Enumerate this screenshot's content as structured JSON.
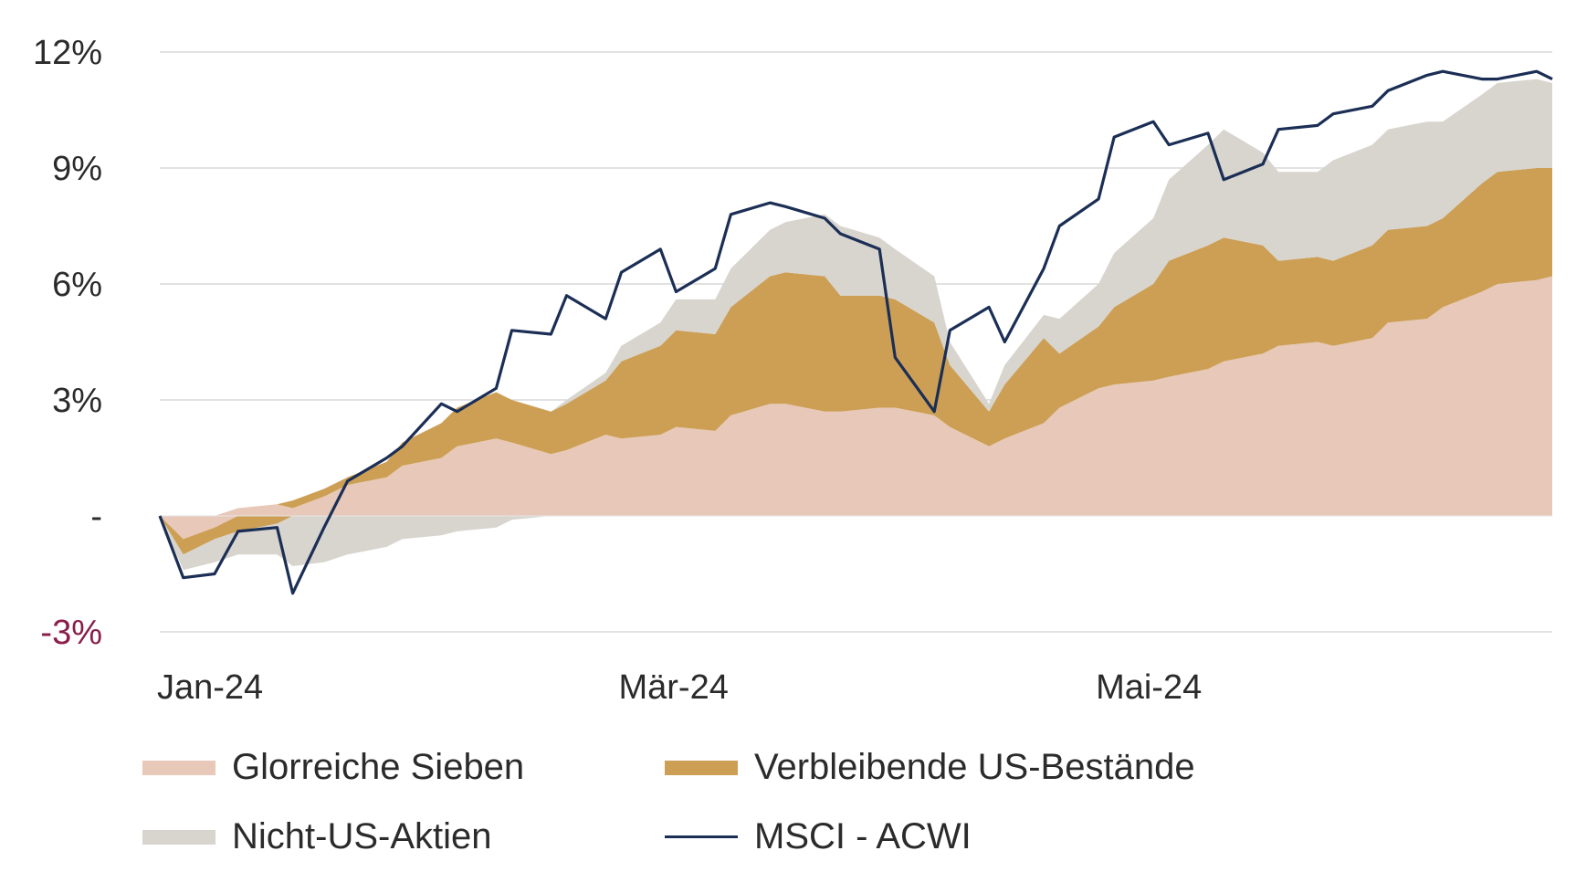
{
  "chart_data": {
    "type": "area",
    "stacked": true,
    "title": "",
    "xlabel": "",
    "ylabel": "",
    "ylim": [
      -3,
      12
    ],
    "grid": true,
    "legend_position": "bottom",
    "y_ticks": [
      {
        "value": 12,
        "label": "12%"
      },
      {
        "value": 9,
        "label": "9%"
      },
      {
        "value": 6,
        "label": "6%"
      },
      {
        "value": 3,
        "label": "3%"
      },
      {
        "value": 0,
        "label": "-"
      },
      {
        "value": -3,
        "label": "-3%"
      }
    ],
    "x_ticks": [
      {
        "date": "2024-01-02",
        "label": "Jan-24"
      },
      {
        "date": "2024-03-01",
        "label": "Mär-24"
      },
      {
        "date": "2024-05-01",
        "label": "Mai-24"
      }
    ],
    "x": [
      "2024-01-02",
      "2024-01-05",
      "2024-01-09",
      "2024-01-12",
      "2024-01-17",
      "2024-01-19",
      "2024-01-23",
      "2024-01-26",
      "2024-01-31",
      "2024-02-02",
      "2024-02-07",
      "2024-02-09",
      "2024-02-14",
      "2024-02-16",
      "2024-02-21",
      "2024-02-23",
      "2024-02-28",
      "2024-03-01",
      "2024-03-06",
      "2024-03-08",
      "2024-03-13",
      "2024-03-15",
      "2024-03-20",
      "2024-03-22",
      "2024-03-27",
      "2024-03-29",
      "2024-04-03",
      "2024-04-05",
      "2024-04-10",
      "2024-04-12",
      "2024-04-17",
      "2024-04-19",
      "2024-04-24",
      "2024-04-26",
      "2024-05-01",
      "2024-05-03",
      "2024-05-08",
      "2024-05-10",
      "2024-05-15",
      "2024-05-17",
      "2024-05-22",
      "2024-05-24",
      "2024-05-29",
      "2024-05-31",
      "2024-06-05",
      "2024-06-07",
      "2024-06-12",
      "2024-06-14",
      "2024-06-19",
      "2024-06-21",
      "2024-06-26",
      "2024-06-28"
    ],
    "series": [
      {
        "name": "Glorreiche Sieben",
        "color": "#e8c8b8",
        "values": [
          0.0,
          -0.6,
          -0.3,
          0.2,
          0.3,
          0.2,
          0.5,
          0.8,
          1.0,
          1.3,
          1.5,
          1.8,
          2.0,
          1.9,
          1.6,
          1.7,
          2.1,
          2.0,
          2.1,
          2.3,
          2.2,
          2.6,
          2.9,
          2.9,
          2.7,
          2.7,
          2.8,
          2.8,
          2.6,
          2.3,
          1.8,
          2.0,
          2.4,
          2.8,
          3.3,
          3.4,
          3.5,
          3.6,
          3.8,
          4.0,
          4.2,
          4.4,
          4.5,
          4.4,
          4.6,
          5.0,
          5.1,
          5.4,
          5.8,
          6.0,
          6.1,
          6.2
        ]
      },
      {
        "name": "Verbleibende US-Bestände",
        "color": "#cc9f55",
        "values": [
          0.0,
          -0.4,
          -0.3,
          -0.4,
          -0.2,
          0.2,
          0.2,
          0.2,
          0.4,
          0.6,
          0.9,
          1.0,
          1.2,
          1.1,
          1.1,
          1.2,
          1.4,
          2.0,
          2.3,
          2.5,
          2.5,
          2.8,
          3.3,
          3.4,
          3.5,
          3.0,
          2.9,
          2.8,
          2.4,
          1.6,
          0.9,
          1.4,
          2.2,
          1.4,
          1.6,
          2.0,
          2.5,
          3.0,
          3.2,
          3.2,
          2.8,
          2.2,
          2.2,
          2.2,
          2.4,
          2.4,
          2.4,
          2.3,
          2.8,
          2.9,
          2.9,
          2.8
        ]
      },
      {
        "name": "Nicht-US-Aktien",
        "color": "#d8d4ce",
        "values": [
          0.0,
          -0.4,
          -0.6,
          -0.6,
          -0.8,
          -1.3,
          -1.2,
          -1.0,
          -0.8,
          -0.6,
          -0.5,
          -0.4,
          -0.3,
          -0.1,
          0.0,
          0.1,
          0.2,
          0.4,
          0.6,
          0.8,
          0.9,
          1.0,
          1.2,
          1.3,
          1.6,
          1.8,
          1.5,
          1.3,
          1.2,
          0.6,
          0.2,
          0.5,
          0.6,
          0.9,
          1.1,
          1.4,
          1.7,
          2.1,
          2.6,
          2.8,
          2.4,
          2.3,
          2.2,
          2.6,
          2.6,
          2.6,
          2.7,
          2.5,
          2.3,
          2.3,
          2.3,
          2.2
        ]
      },
      {
        "name": "MSCI - ACWI",
        "color": "#1b2e55",
        "type": "line",
        "values": [
          0.0,
          -1.6,
          -1.5,
          -0.4,
          -0.3,
          -2.0,
          -0.3,
          0.9,
          1.5,
          1.8,
          2.9,
          2.7,
          3.3,
          4.8,
          4.7,
          5.7,
          5.1,
          6.3,
          6.9,
          5.8,
          6.4,
          7.8,
          8.1,
          8.0,
          7.7,
          7.3,
          6.9,
          4.1,
          2.7,
          4.8,
          5.4,
          4.5,
          6.4,
          7.5,
          8.2,
          9.8,
          10.2,
          9.6,
          9.9,
          8.7,
          9.1,
          10.0,
          10.1,
          10.4,
          10.6,
          11.0,
          11.4,
          11.5,
          11.3,
          11.3,
          11.5,
          11.3
        ]
      }
    ]
  },
  "legend": {
    "items": [
      {
        "label": "Glorreiche Sieben",
        "color": "#e8c8b8",
        "kind": "area"
      },
      {
        "label": "Verbleibende US-Bestände",
        "color": "#cc9f55",
        "kind": "area"
      },
      {
        "label": "Nicht-US-Aktien",
        "color": "#d8d4ce",
        "kind": "area"
      },
      {
        "label": "MSCI - ACWI",
        "color": "#1b2e55",
        "kind": "line"
      }
    ]
  }
}
